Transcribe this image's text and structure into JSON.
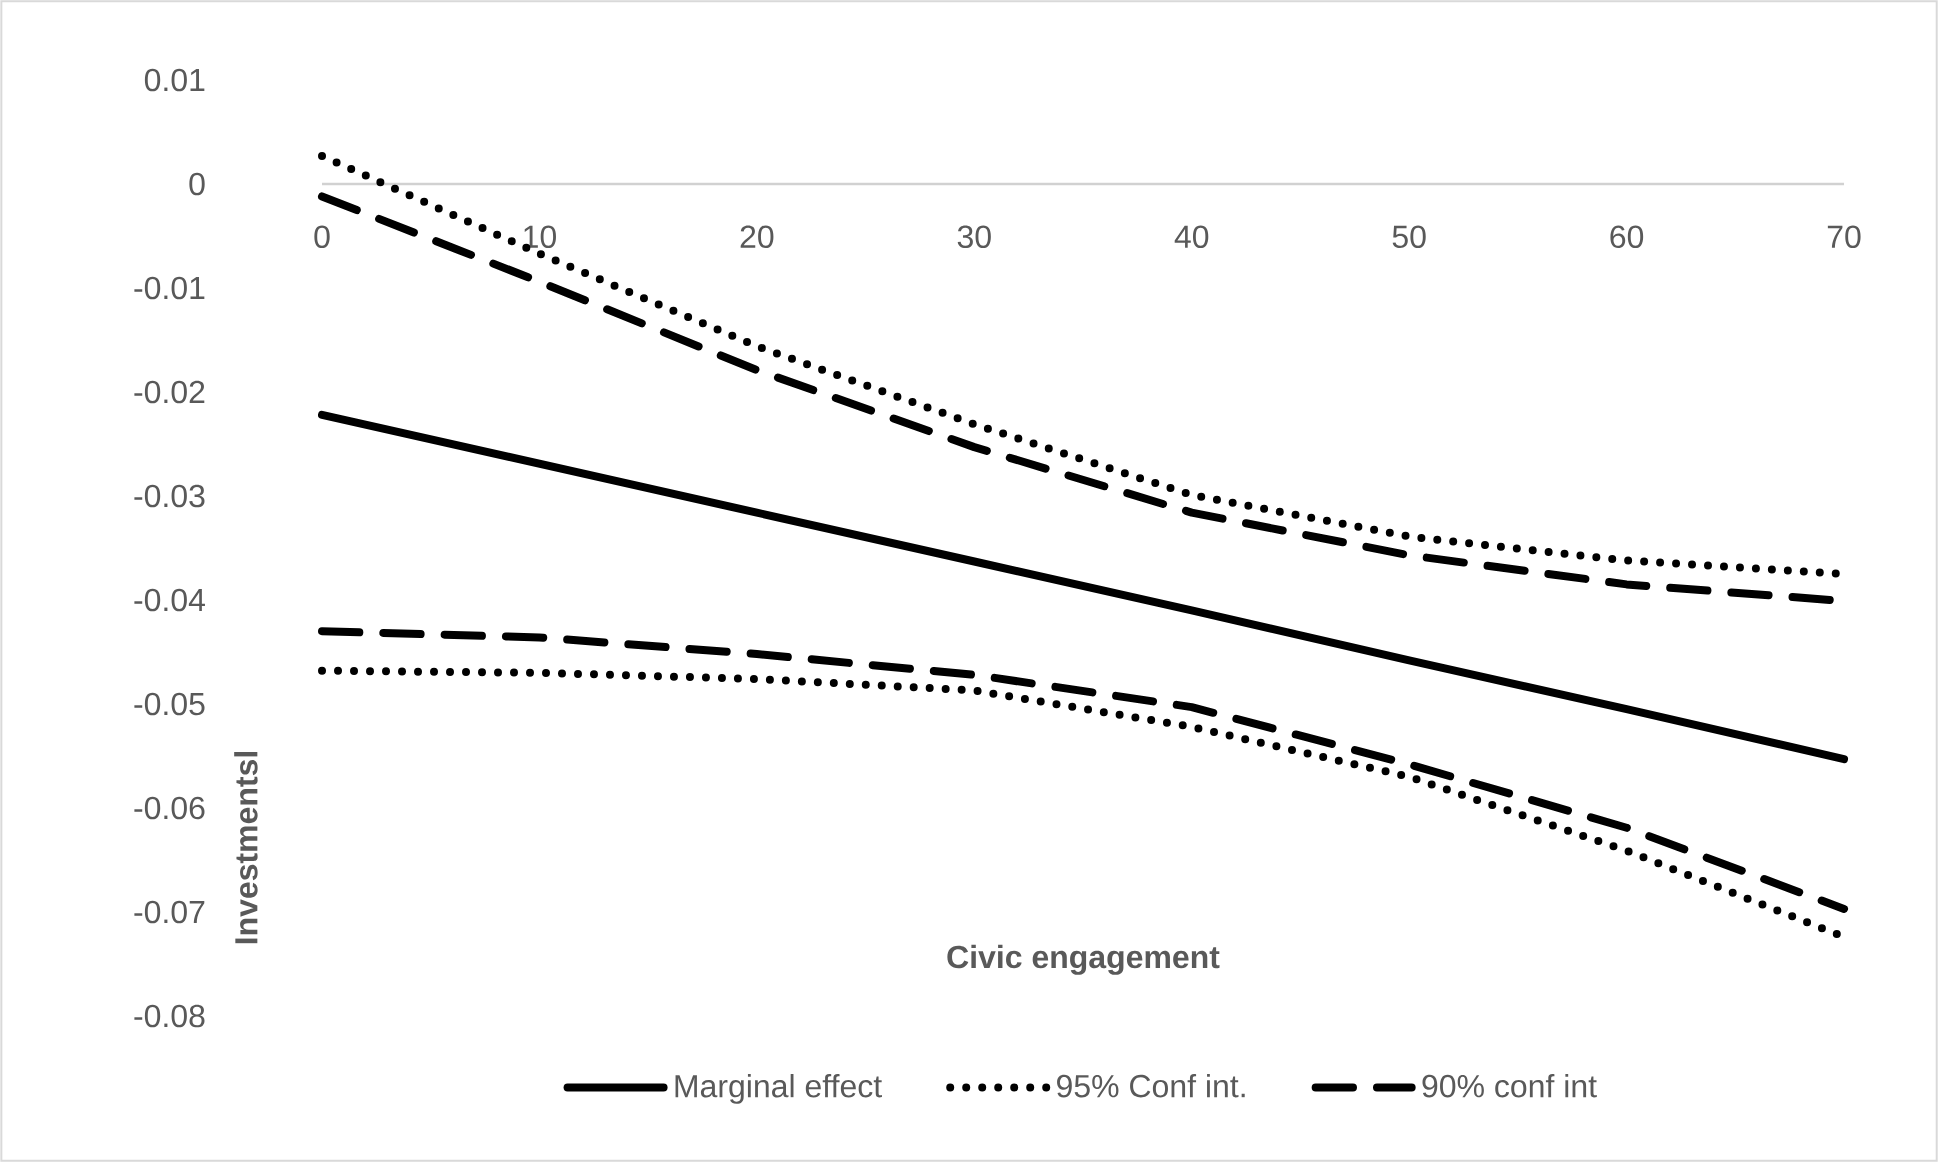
{
  "chart_data": {
    "type": "line",
    "xlabel": "Civic engagement",
    "ylabel": "Investmentsl",
    "x": [
      0,
      10,
      20,
      30,
      40,
      50,
      60,
      70
    ],
    "series": [
      {
        "name": "Marginal effect",
        "color": "#000000",
        "line_style": "solid",
        "values": [
          -0.0222,
          -0.0269,
          -0.0316,
          -0.0363,
          -0.041,
          -0.0458,
          -0.0505,
          -0.0553
        ]
      },
      {
        "name": "95% Conf int.",
        "color": "#000000",
        "line_style": "dotted",
        "values": [
          0.0027,
          -0.0067,
          -0.0156,
          -0.0231,
          -0.0299,
          -0.0339,
          -0.0362,
          -0.0375
        ]
      },
      {
        "color": "#000000",
        "line_style": "dotted",
        "values": [
          -0.0468,
          -0.047,
          -0.0476,
          -0.0487,
          -0.0522,
          -0.057,
          -0.0641,
          -0.0724
        ]
      },
      {
        "name": "90% conf int",
        "color": "#000000",
        "line_style": "dashed",
        "values": [
          -0.0012,
          -0.0094,
          -0.0179,
          -0.0253,
          -0.0316,
          -0.0357,
          -0.0385,
          -0.0401
        ]
      },
      {
        "color": "#000000",
        "line_style": "dashed",
        "values": [
          -0.043,
          -0.0436,
          -0.0452,
          -0.0472,
          -0.0503,
          -0.0558,
          -0.0619,
          -0.0697
        ]
      }
    ],
    "xlim": [
      0,
      70
    ],
    "xticks": [
      0,
      10,
      20,
      30,
      40,
      50,
      60,
      70
    ],
    "ylim": [
      -0.08,
      0.01
    ],
    "yticks": [
      0.01,
      0,
      -0.01,
      -0.02,
      -0.03,
      -0.04,
      -0.05,
      -0.06,
      -0.07,
      -0.08
    ],
    "grid": false,
    "legend": "bottom",
    "marker": "none"
  }
}
